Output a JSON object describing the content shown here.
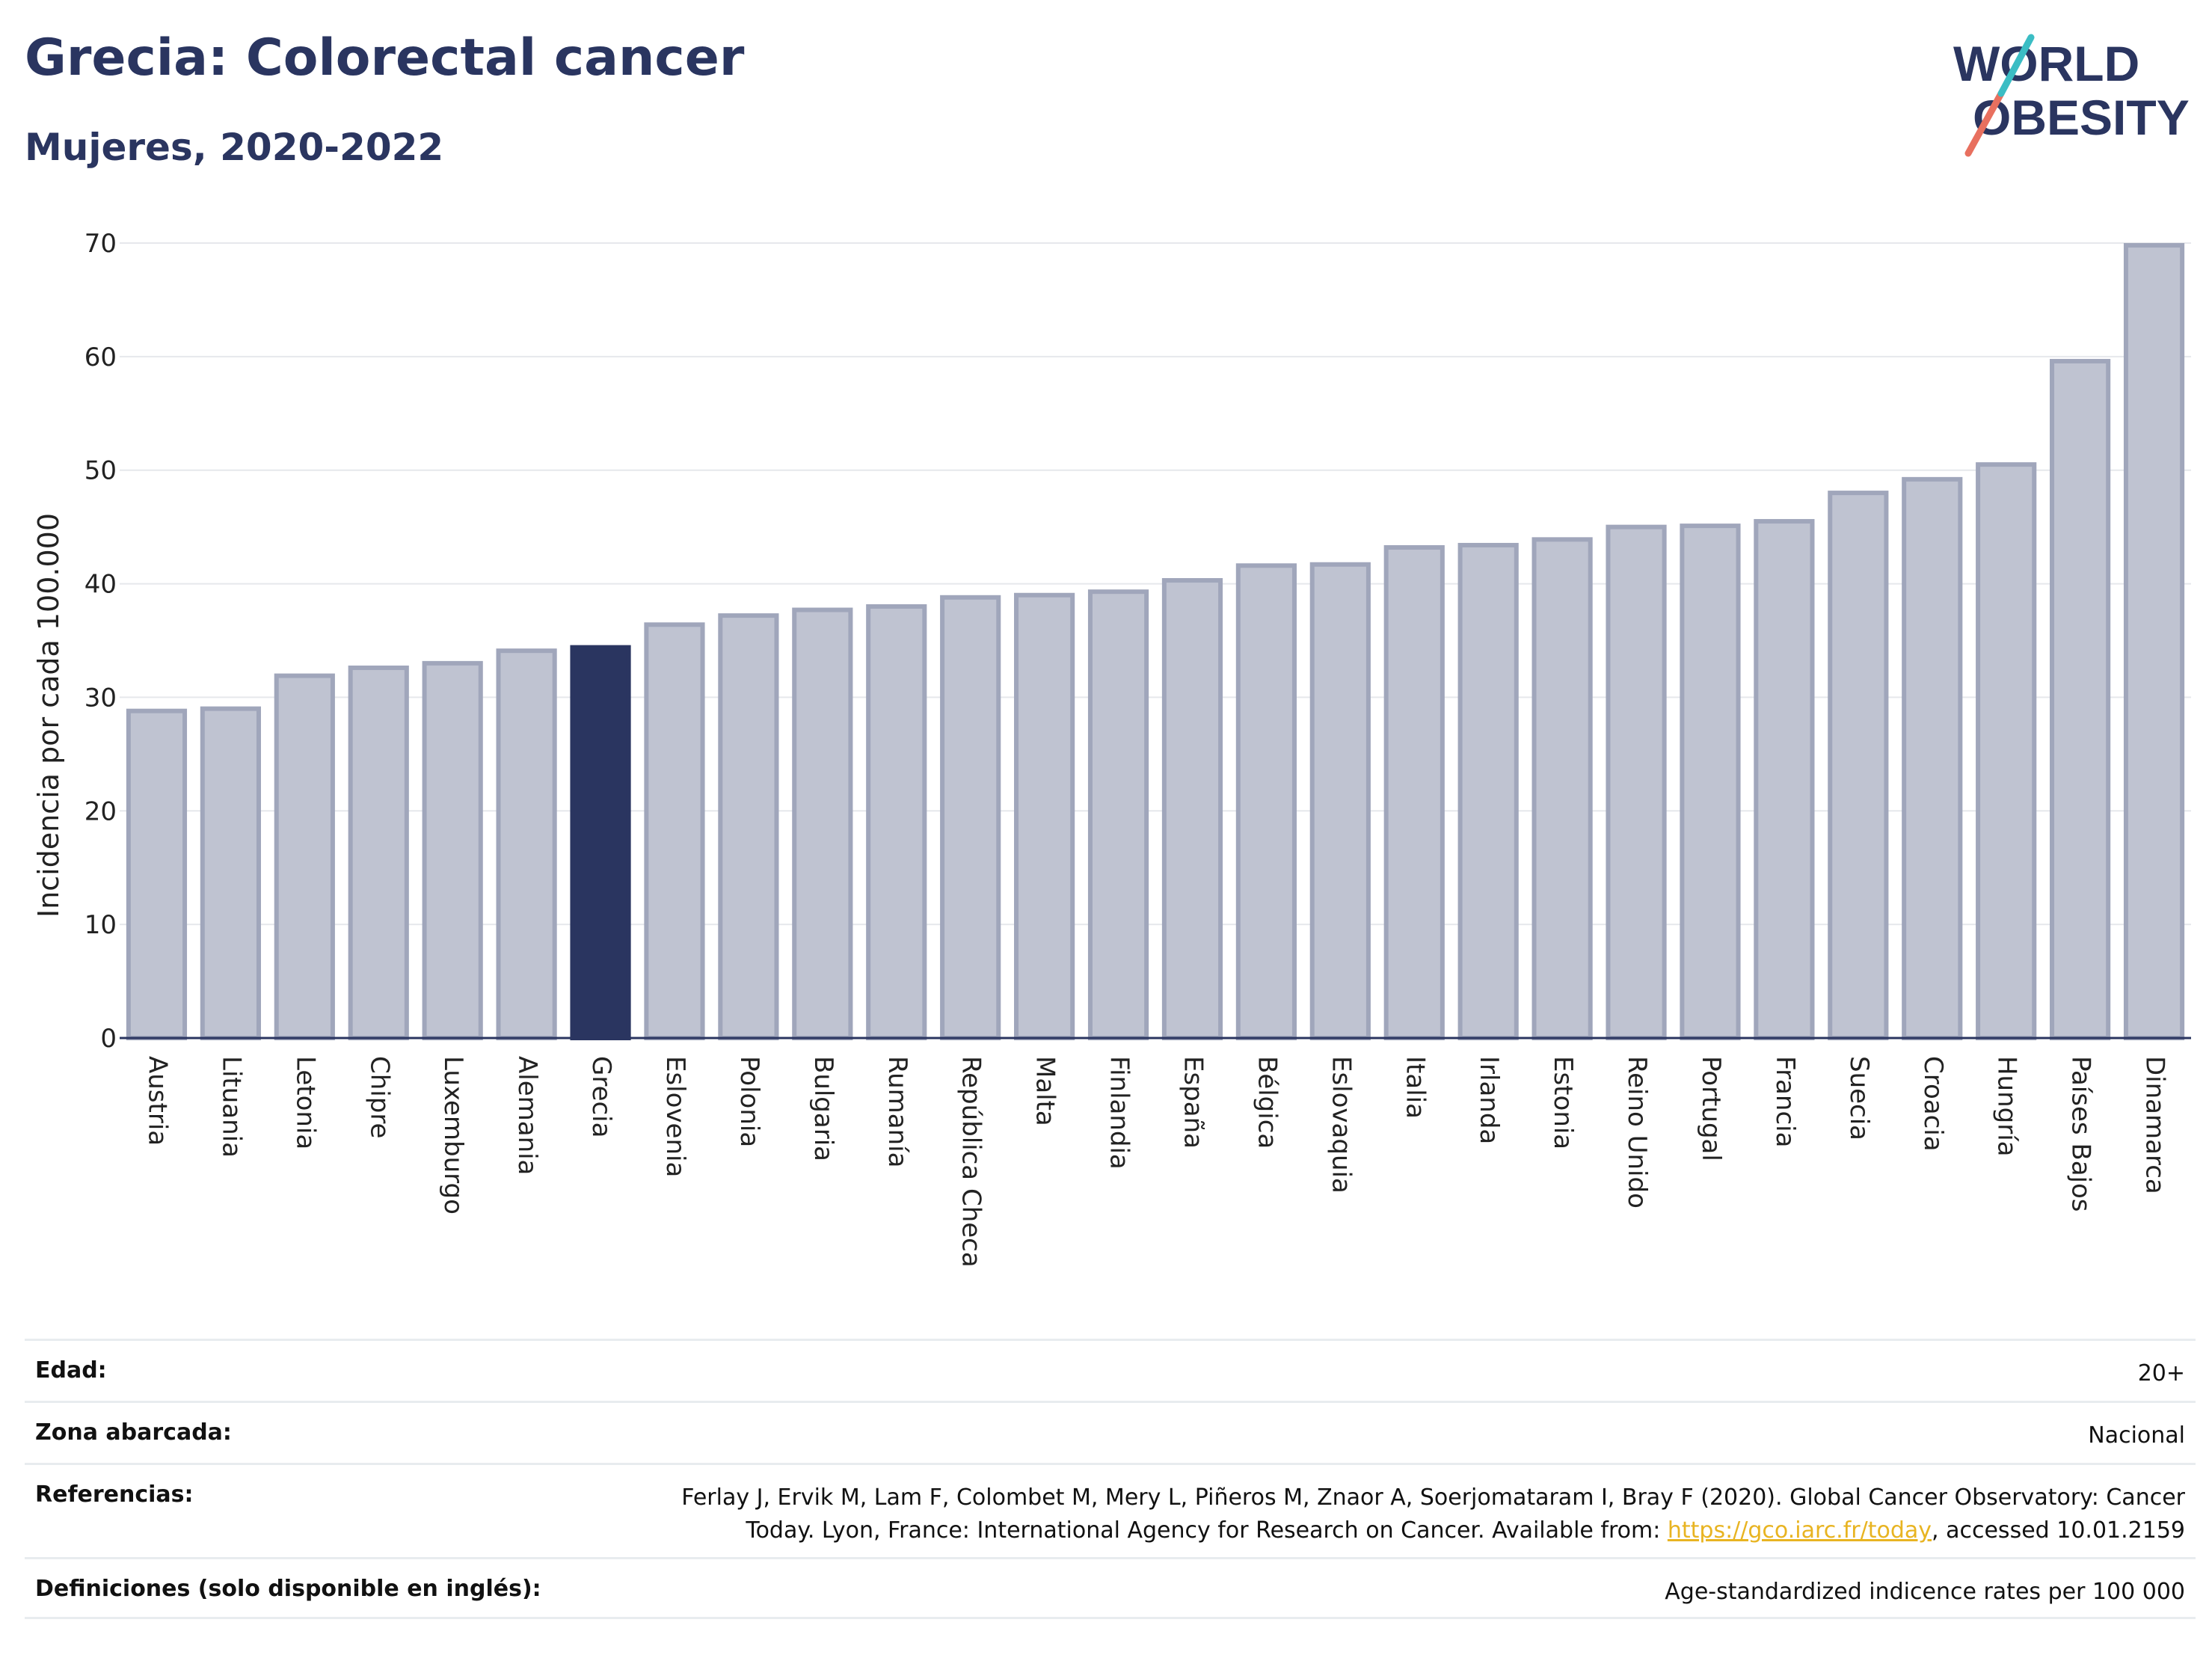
{
  "header": {
    "title": "Grecia: Colorectal cancer",
    "subtitle": "Mujeres, 2020-2022"
  },
  "logo": {
    "line1": "WORLD",
    "line2": "OBESITY",
    "text": "WORLD OBESITY"
  },
  "colors": {
    "bar": "#bfc3d1",
    "bar_edge": "#a0a6bb",
    "highlight": "#2a3560",
    "title": "#2a3560",
    "grid": "#e6e8ec",
    "link": "#e8b422",
    "logo_slash_teal": "#3bbdc4",
    "logo_slash_coral": "#e8705f"
  },
  "chart_data": {
    "type": "bar",
    "ylabel": "Incidencia por cada 100.000",
    "ylim": [
      0,
      70
    ],
    "yticks": [
      0,
      10,
      20,
      30,
      40,
      50,
      60,
      70
    ],
    "grid": true,
    "highlight": "Grecia",
    "categories": [
      "Austria",
      "Lituania",
      "Letonia",
      "Chipre",
      "Luxemburgo",
      "Alemania",
      "Grecia",
      "Eslovenia",
      "Polonia",
      "Bulgaria",
      "Rumanía",
      "República Checa",
      "Malta",
      "Finlandia",
      "España",
      "Bélgica",
      "Eslovaquia",
      "Italia",
      "Irlanda",
      "Estonia",
      "Reino Unido",
      "Portugal",
      "Francia",
      "Suecia",
      "Croacia",
      "Hungría",
      "Países Bajos",
      "Dinamarca"
    ],
    "values": [
      28.8,
      29.0,
      31.9,
      32.6,
      33.0,
      34.1,
      34.4,
      36.4,
      37.2,
      37.7,
      38.0,
      38.8,
      39.0,
      39.3,
      40.3,
      41.6,
      41.7,
      43.2,
      43.4,
      43.9,
      45.0,
      45.1,
      45.5,
      48.0,
      49.2,
      50.5,
      59.6,
      69.8
    ]
  },
  "info": {
    "age_label": "Edad:",
    "age_value": "20+",
    "area_label": "Zona abarcada:",
    "area_value": "Nacional",
    "ref_label": "Referencias:",
    "ref_text_1": "Ferlay J, Ervik M, Lam F, Colombet M, Mery L, Piñeros M, Znaor A, Soerjomataram I, Bray F (2020). Global Cancer Observatory: Cancer",
    "ref_text_2": "Today. Lyon, France: International Agency for Research on Cancer. Available from: ",
    "ref_link": "https://gco.iarc.fr/today",
    "ref_text_3": ", accessed 10.01.2159",
    "def_label": "Definiciones (solo disponible en inglés):",
    "def_value": "Age-standardized indicence rates per 100 000"
  }
}
